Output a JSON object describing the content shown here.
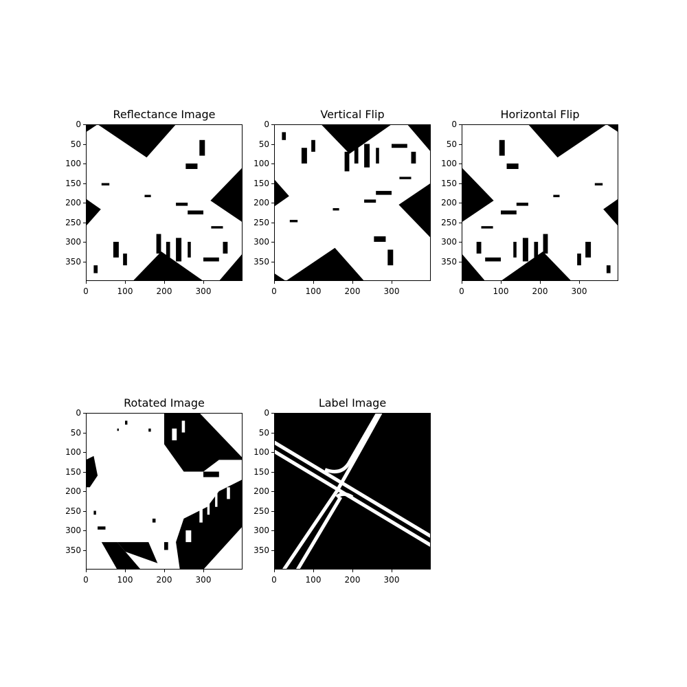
{
  "figure": {
    "panels": [
      {
        "id": "reflectance",
        "title": "Reflectance Image",
        "xticks": [
          "0",
          "100",
          "200",
          "300"
        ],
        "yticks": [
          "0",
          "50",
          "100",
          "150",
          "200",
          "250",
          "300",
          "350"
        ]
      },
      {
        "id": "vertical-flip",
        "title": "Vertical Flip",
        "xticks": [
          "0",
          "100",
          "200",
          "300"
        ],
        "yticks": [
          "0",
          "50",
          "100",
          "150",
          "200",
          "250",
          "300",
          "350"
        ]
      },
      {
        "id": "horizontal-flip",
        "title": "Horizontal Flip",
        "xticks": [
          "0",
          "100",
          "200",
          "300"
        ],
        "yticks": [
          "0",
          "50",
          "100",
          "150",
          "200",
          "250",
          "300",
          "350"
        ]
      },
      {
        "id": "rotated",
        "title": "Rotated Image",
        "xticks": [
          "0",
          "100",
          "200",
          "300"
        ],
        "yticks": [
          "0",
          "50",
          "100",
          "150",
          "200",
          "250",
          "300",
          "350"
        ]
      },
      {
        "id": "label",
        "title": "Label Image",
        "xticks": [
          "0",
          "100",
          "200",
          "300"
        ],
        "yticks": [
          "0",
          "50",
          "100",
          "150",
          "200",
          "250",
          "300",
          "350"
        ]
      }
    ],
    "colors": {
      "foreground": "#ffffff",
      "background": "#000000"
    }
  }
}
